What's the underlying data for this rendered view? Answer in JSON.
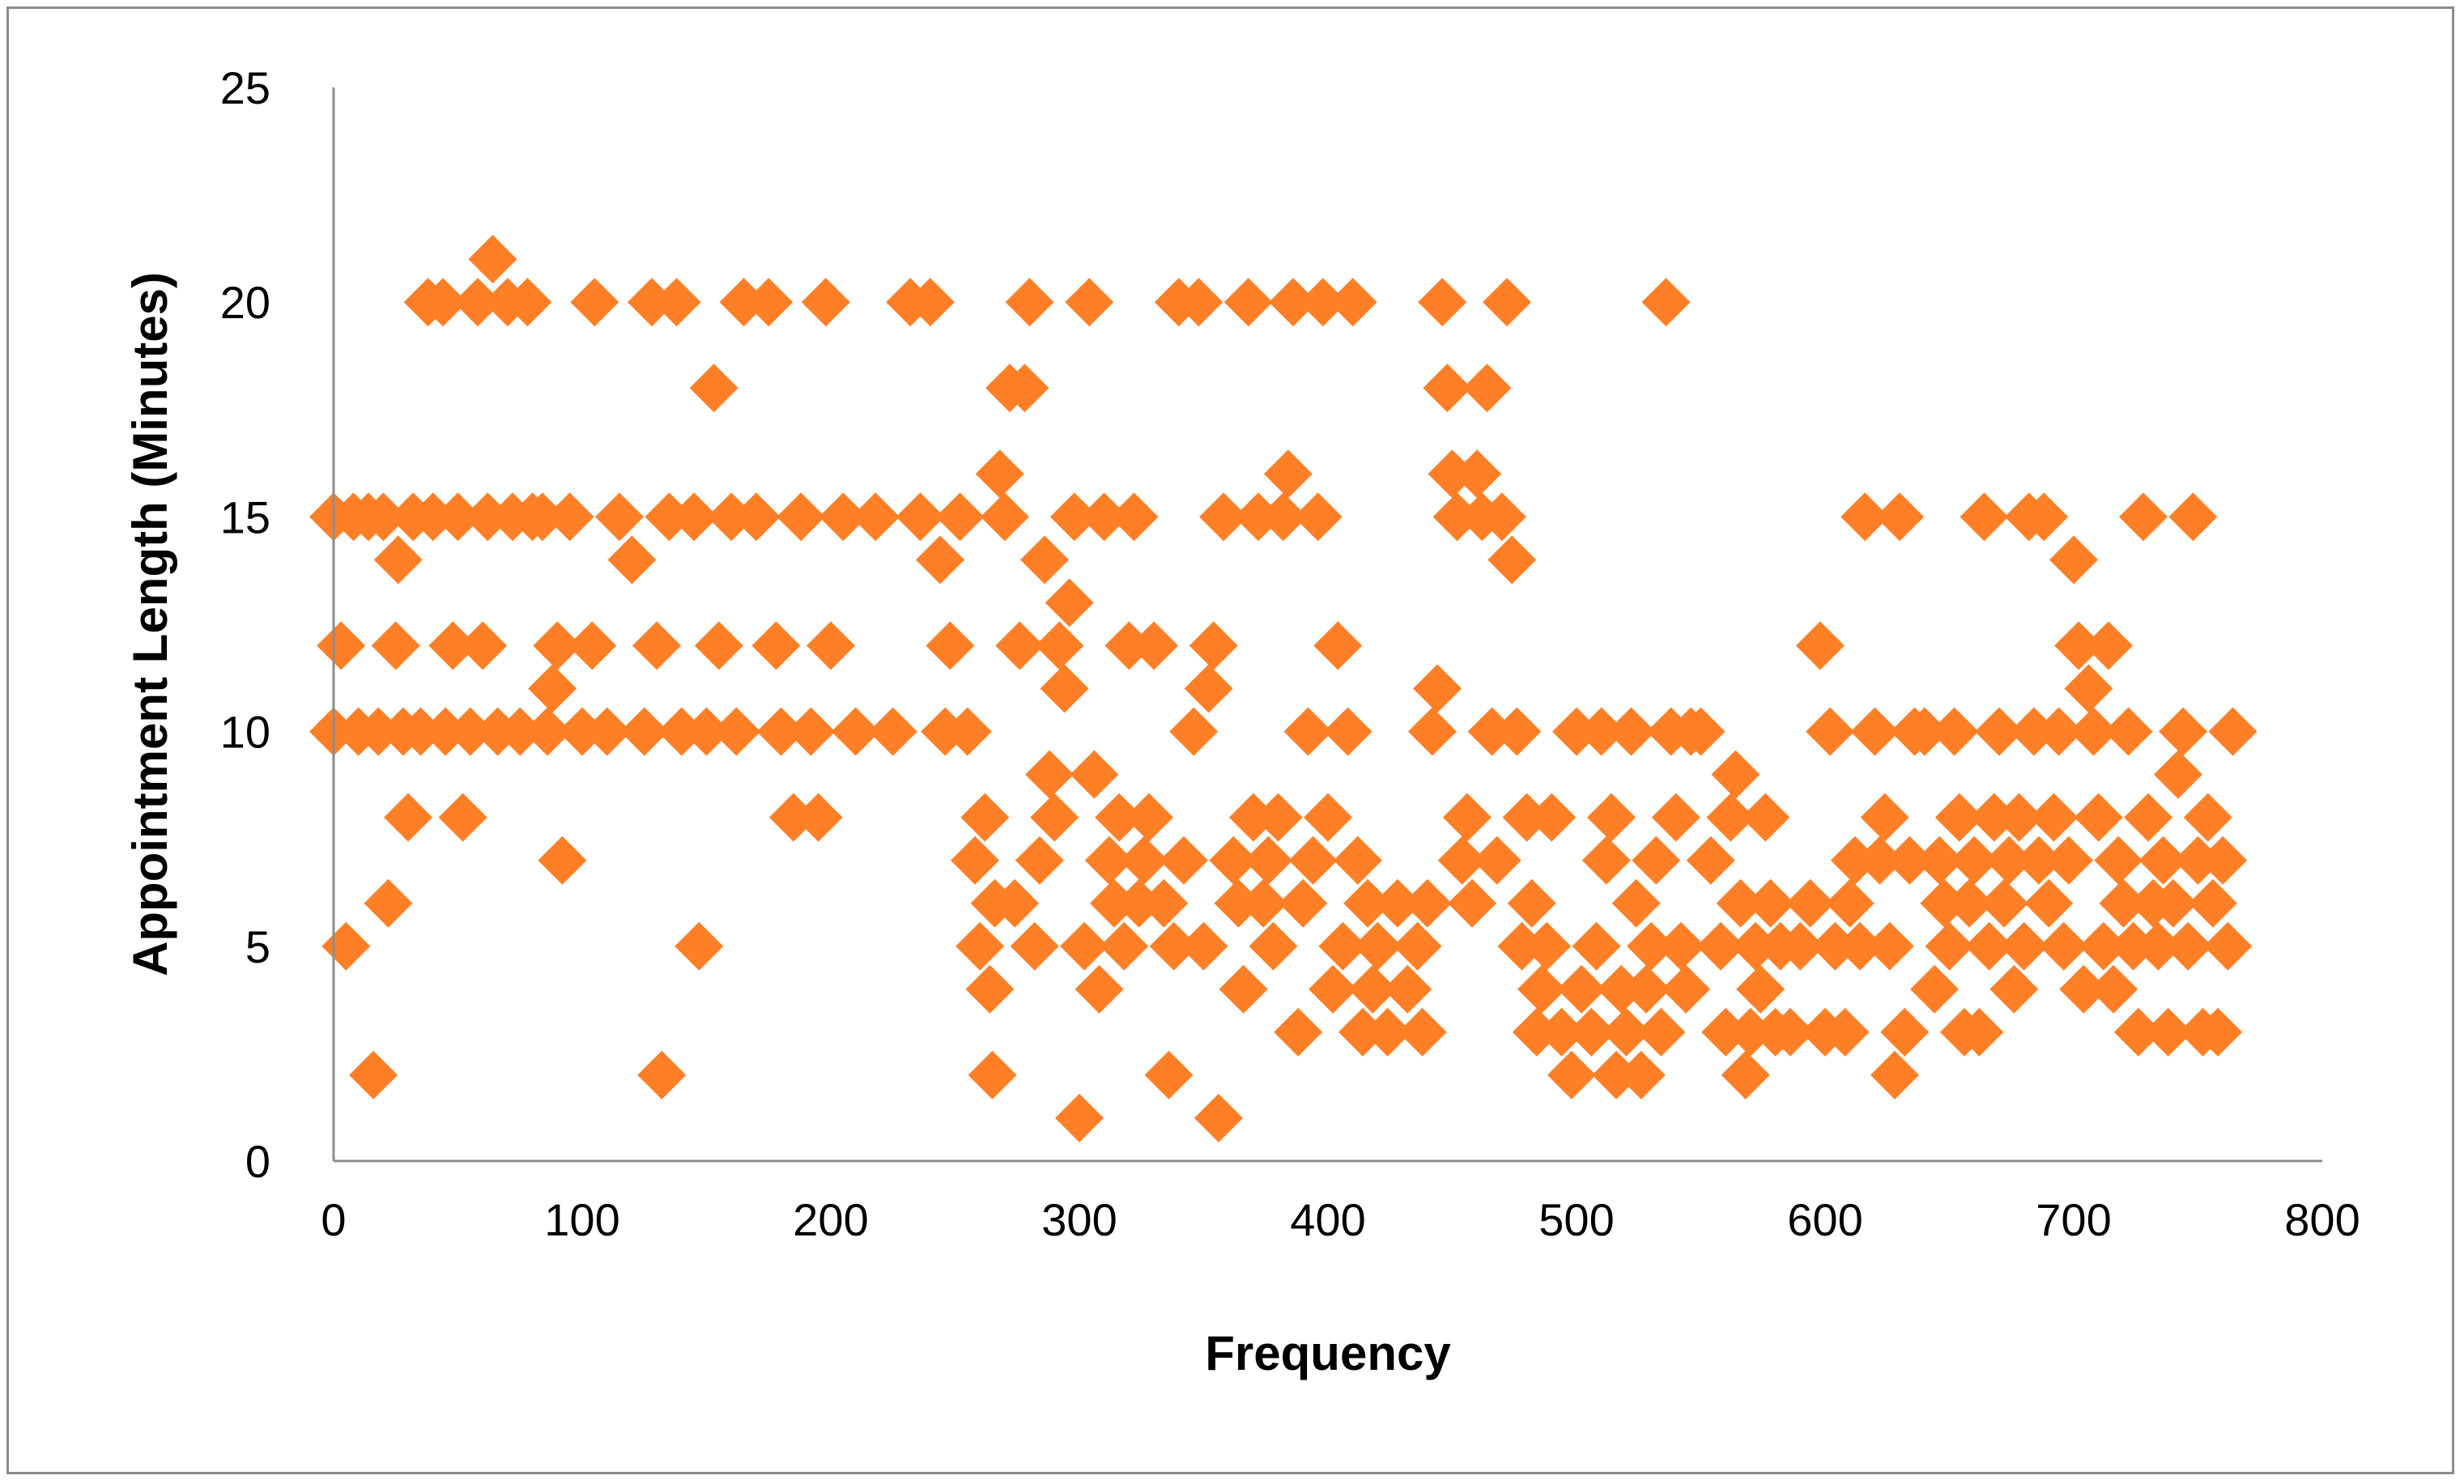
{
  "chart_data": {
    "type": "scatter",
    "title": "",
    "xlabel": "Frequency",
    "ylabel": "Appointment Length (Minutes)",
    "xlim": [
      0,
      800
    ],
    "ylim": [
      0,
      25
    ],
    "x_ticks": [
      0,
      100,
      200,
      300,
      400,
      500,
      600,
      700,
      800
    ],
    "y_ticks": [
      0,
      5,
      10,
      15,
      20,
      25
    ],
    "x_tick_labels": [
      "0",
      "100",
      "200",
      "300",
      "400",
      "500",
      "600",
      "700",
      "800"
    ],
    "y_tick_labels": [
      "0",
      "5",
      "10",
      "15",
      "20",
      "25"
    ],
    "grid": false,
    "legend": "none",
    "marker": "diamond",
    "colors": {
      "marker": "#FF7F27",
      "axis": "#8c8c8c",
      "frame": "#8c8c8c"
    },
    "series": [
      {
        "points": [
          [
            0,
            15
          ],
          [
            0,
            10
          ],
          [
            3,
            12
          ],
          [
            5,
            5
          ],
          [
            8,
            15
          ],
          [
            10,
            10
          ],
          [
            14,
            15
          ],
          [
            16,
            2
          ],
          [
            18,
            10
          ],
          [
            20,
            15
          ],
          [
            22,
            6
          ],
          [
            25,
            12
          ],
          [
            26,
            14
          ],
          [
            28,
            10
          ],
          [
            30,
            8
          ],
          [
            32,
            15
          ],
          [
            35,
            10
          ],
          [
            38,
            20
          ],
          [
            40,
            15
          ],
          [
            44,
            20
          ],
          [
            45,
            10
          ],
          [
            48,
            12
          ],
          [
            50,
            15
          ],
          [
            52,
            8
          ],
          [
            55,
            10
          ],
          [
            58,
            20
          ],
          [
            60,
            12
          ],
          [
            62,
            15
          ],
          [
            64,
            21
          ],
          [
            66,
            10
          ],
          [
            70,
            20
          ],
          [
            72,
            15
          ],
          [
            75,
            10
          ],
          [
            78,
            20
          ],
          [
            80,
            15
          ],
          [
            84,
            15
          ],
          [
            86,
            10
          ],
          [
            88,
            11
          ],
          [
            90,
            12
          ],
          [
            92,
            7
          ],
          [
            95,
            15
          ],
          [
            100,
            10
          ],
          [
            104,
            12
          ],
          [
            105,
            20
          ],
          [
            110,
            10
          ],
          [
            115,
            15
          ],
          [
            120,
            14
          ],
          [
            125,
            10
          ],
          [
            128,
            20
          ],
          [
            130,
            12
          ],
          [
            132,
            2
          ],
          [
            135,
            15
          ],
          [
            138,
            20
          ],
          [
            140,
            10
          ],
          [
            145,
            15
          ],
          [
            147,
            5
          ],
          [
            150,
            10
          ],
          [
            153,
            18
          ],
          [
            155,
            12
          ],
          [
            160,
            15
          ],
          [
            162,
            10
          ],
          [
            165,
            20
          ],
          [
            170,
            15
          ],
          [
            175,
            20
          ],
          [
            178,
            12
          ],
          [
            180,
            10
          ],
          [
            185,
            8
          ],
          [
            188,
            15
          ],
          [
            192,
            10
          ],
          [
            195,
            8
          ],
          [
            198,
            20
          ],
          [
            200,
            12
          ],
          [
            205,
            15
          ],
          [
            210,
            10
          ],
          [
            218,
            15
          ],
          [
            225,
            10
          ],
          [
            232,
            20
          ],
          [
            236,
            15
          ],
          [
            240,
            20
          ],
          [
            244,
            14
          ],
          [
            246,
            10
          ],
          [
            248,
            12
          ],
          [
            252,
            15
          ],
          [
            255,
            10
          ],
          [
            258,
            7
          ],
          [
            260,
            5
          ],
          [
            262,
            8
          ],
          [
            264,
            4
          ],
          [
            265,
            2
          ],
          [
            266,
            6
          ],
          [
            268,
            16
          ],
          [
            270,
            15
          ],
          [
            272,
            18
          ],
          [
            274,
            6
          ],
          [
            276,
            12
          ],
          [
            278,
            18
          ],
          [
            280,
            20
          ],
          [
            282,
            5
          ],
          [
            284,
            7
          ],
          [
            286,
            14
          ],
          [
            288,
            9
          ],
          [
            290,
            8
          ],
          [
            292,
            12
          ],
          [
            294,
            11
          ],
          [
            296,
            13
          ],
          [
            298,
            15
          ],
          [
            300,
            1
          ],
          [
            302,
            5
          ],
          [
            304,
            20
          ],
          [
            306,
            9
          ],
          [
            308,
            4
          ],
          [
            310,
            15
          ],
          [
            312,
            7
          ],
          [
            314,
            6
          ],
          [
            316,
            8
          ],
          [
            318,
            5
          ],
          [
            320,
            12
          ],
          [
            322,
            15
          ],
          [
            324,
            6
          ],
          [
            326,
            7
          ],
          [
            328,
            8
          ],
          [
            330,
            12
          ],
          [
            334,
            6
          ],
          [
            336,
            2
          ],
          [
            338,
            5
          ],
          [
            340,
            20
          ],
          [
            342,
            7
          ],
          [
            346,
            10
          ],
          [
            348,
            20
          ],
          [
            350,
            5
          ],
          [
            352,
            11
          ],
          [
            354,
            12
          ],
          [
            356,
            1
          ],
          [
            358,
            15
          ],
          [
            362,
            7
          ],
          [
            364,
            6
          ],
          [
            366,
            4
          ],
          [
            368,
            20
          ],
          [
            370,
            8
          ],
          [
            372,
            15
          ],
          [
            374,
            6
          ],
          [
            376,
            7
          ],
          [
            378,
            5
          ],
          [
            380,
            8
          ],
          [
            382,
            15
          ],
          [
            384,
            16
          ],
          [
            386,
            20
          ],
          [
            388,
            3
          ],
          [
            390,
            6
          ],
          [
            392,
            10
          ],
          [
            394,
            7
          ],
          [
            396,
            15
          ],
          [
            398,
            20
          ],
          [
            400,
            8
          ],
          [
            402,
            4
          ],
          [
            404,
            12
          ],
          [
            406,
            5
          ],
          [
            408,
            10
          ],
          [
            410,
            20
          ],
          [
            412,
            7
          ],
          [
            414,
            3
          ],
          [
            416,
            6
          ],
          [
            418,
            4
          ],
          [
            420,
            5
          ],
          [
            424,
            3
          ],
          [
            428,
            6
          ],
          [
            432,
            4
          ],
          [
            436,
            5
          ],
          [
            438,
            3
          ],
          [
            440,
            6
          ],
          [
            442,
            10
          ],
          [
            444,
            11
          ],
          [
            446,
            20
          ],
          [
            448,
            18
          ],
          [
            450,
            16
          ],
          [
            452,
            15
          ],
          [
            454,
            7
          ],
          [
            456,
            8
          ],
          [
            458,
            6
          ],
          [
            460,
            16
          ],
          [
            462,
            15
          ],
          [
            464,
            18
          ],
          [
            466,
            10
          ],
          [
            468,
            7
          ],
          [
            470,
            15
          ],
          [
            472,
            20
          ],
          [
            474,
            14
          ],
          [
            476,
            10
          ],
          [
            478,
            5
          ],
          [
            480,
            8
          ],
          [
            482,
            6
          ],
          [
            484,
            3
          ],
          [
            486,
            4
          ],
          [
            488,
            5
          ],
          [
            490,
            8
          ],
          [
            494,
            3
          ],
          [
            498,
            2
          ],
          [
            500,
            10
          ],
          [
            502,
            4
          ],
          [
            506,
            3
          ],
          [
            508,
            5
          ],
          [
            510,
            10
          ],
          [
            512,
            7
          ],
          [
            514,
            8
          ],
          [
            516,
            2
          ],
          [
            518,
            4
          ],
          [
            520,
            3
          ],
          [
            522,
            10
          ],
          [
            524,
            6
          ],
          [
            526,
            2
          ],
          [
            528,
            4
          ],
          [
            530,
            5
          ],
          [
            532,
            7
          ],
          [
            534,
            3
          ],
          [
            536,
            20
          ],
          [
            538,
            10
          ],
          [
            540,
            8
          ],
          [
            542,
            5
          ],
          [
            544,
            4
          ],
          [
            546,
            10
          ],
          [
            550,
            10
          ],
          [
            554,
            7
          ],
          [
            558,
            5
          ],
          [
            560,
            3
          ],
          [
            562,
            8
          ],
          [
            564,
            9
          ],
          [
            566,
            6
          ],
          [
            568,
            2
          ],
          [
            570,
            3
          ],
          [
            572,
            5
          ],
          [
            574,
            4
          ],
          [
            576,
            8
          ],
          [
            578,
            6
          ],
          [
            580,
            3
          ],
          [
            582,
            5
          ],
          [
            586,
            3
          ],
          [
            590,
            5
          ],
          [
            594,
            6
          ],
          [
            598,
            12
          ],
          [
            600,
            3
          ],
          [
            602,
            10
          ],
          [
            604,
            5
          ],
          [
            608,
            3
          ],
          [
            610,
            6
          ],
          [
            612,
            7
          ],
          [
            614,
            5
          ],
          [
            616,
            15
          ],
          [
            620,
            10
          ],
          [
            622,
            7
          ],
          [
            624,
            8
          ],
          [
            626,
            5
          ],
          [
            628,
            2
          ],
          [
            630,
            15
          ],
          [
            632,
            3
          ],
          [
            634,
            7
          ],
          [
            636,
            10
          ],
          [
            640,
            10
          ],
          [
            644,
            4
          ],
          [
            646,
            7
          ],
          [
            648,
            6
          ],
          [
            650,
            5
          ],
          [
            652,
            10
          ],
          [
            654,
            8
          ],
          [
            656,
            3
          ],
          [
            658,
            6
          ],
          [
            660,
            7
          ],
          [
            662,
            3
          ],
          [
            664,
            15
          ],
          [
            666,
            5
          ],
          [
            668,
            8
          ],
          [
            670,
            10
          ],
          [
            672,
            6
          ],
          [
            674,
            7
          ],
          [
            676,
            4
          ],
          [
            678,
            8
          ],
          [
            680,
            5
          ],
          [
            682,
            15
          ],
          [
            684,
            10
          ],
          [
            686,
            7
          ],
          [
            688,
            15
          ],
          [
            690,
            6
          ],
          [
            692,
            8
          ],
          [
            694,
            10
          ],
          [
            696,
            5
          ],
          [
            698,
            7
          ],
          [
            700,
            14
          ],
          [
            702,
            12
          ],
          [
            704,
            4
          ],
          [
            706,
            11
          ],
          [
            708,
            10
          ],
          [
            710,
            8
          ],
          [
            712,
            5
          ],
          [
            714,
            12
          ],
          [
            716,
            4
          ],
          [
            718,
            7
          ],
          [
            720,
            6
          ],
          [
            722,
            10
          ],
          [
            724,
            5
          ],
          [
            726,
            3
          ],
          [
            728,
            15
          ],
          [
            730,
            8
          ],
          [
            732,
            6
          ],
          [
            734,
            5
          ],
          [
            736,
            7
          ],
          [
            738,
            3
          ],
          [
            740,
            6
          ],
          [
            742,
            9
          ],
          [
            744,
            10
          ],
          [
            746,
            5
          ],
          [
            748,
            15
          ],
          [
            750,
            7
          ],
          [
            752,
            3
          ],
          [
            754,
            8
          ],
          [
            756,
            6
          ],
          [
            758,
            3
          ],
          [
            760,
            7
          ],
          [
            762,
            5
          ],
          [
            764,
            10
          ]
        ]
      }
    ]
  }
}
